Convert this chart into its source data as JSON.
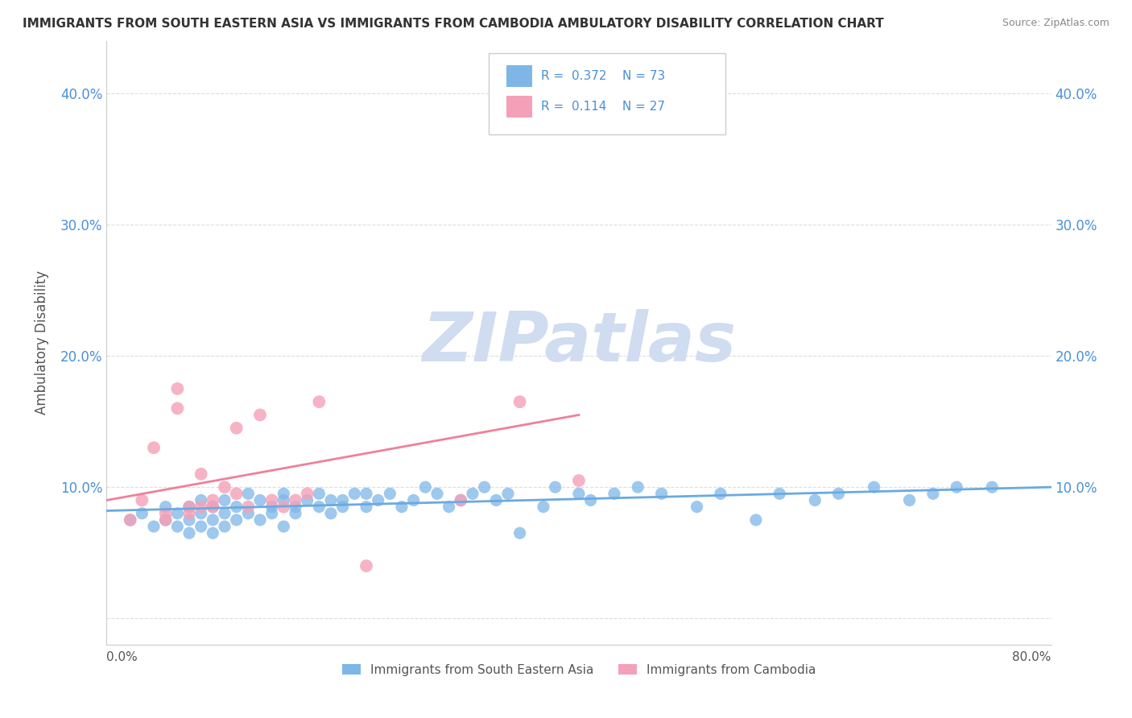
{
  "title": "IMMIGRANTS FROM SOUTH EASTERN ASIA VS IMMIGRANTS FROM CAMBODIA AMBULATORY DISABILITY CORRELATION CHART",
  "source": "Source: ZipAtlas.com",
  "ylabel": "Ambulatory Disability",
  "yticks": [
    "",
    "10.0%",
    "20.0%",
    "30.0%",
    "40.0%"
  ],
  "ytick_vals": [
    0.0,
    0.1,
    0.2,
    0.3,
    0.4
  ],
  "xlim": [
    0.0,
    0.8
  ],
  "ylim": [
    -0.02,
    0.44
  ],
  "legend_r1": "0.372",
  "legend_n1": "73",
  "legend_r2": "0.114",
  "legend_n2": "27",
  "color_blue": "#7EB6E8",
  "color_pink": "#F4A0B8",
  "color_blue_line": "#6AAAE0",
  "color_pink_line": "#F08098",
  "color_blue_text": "#4A90D9",
  "watermark_color": "#D0DCF0",
  "background_color": "#FFFFFF",
  "grid_color": "#DDDDDD",
  "blue_scatter_x": [
    0.02,
    0.03,
    0.04,
    0.05,
    0.05,
    0.06,
    0.06,
    0.07,
    0.07,
    0.07,
    0.08,
    0.08,
    0.08,
    0.09,
    0.09,
    0.09,
    0.1,
    0.1,
    0.1,
    0.11,
    0.11,
    0.12,
    0.12,
    0.13,
    0.13,
    0.14,
    0.14,
    0.15,
    0.15,
    0.15,
    0.16,
    0.16,
    0.17,
    0.18,
    0.18,
    0.19,
    0.19,
    0.2,
    0.2,
    0.21,
    0.22,
    0.22,
    0.23,
    0.24,
    0.25,
    0.26,
    0.27,
    0.28,
    0.29,
    0.3,
    0.31,
    0.32,
    0.33,
    0.34,
    0.35,
    0.37,
    0.38,
    0.4,
    0.41,
    0.43,
    0.45,
    0.47,
    0.5,
    0.52,
    0.55,
    0.57,
    0.6,
    0.62,
    0.65,
    0.68,
    0.7,
    0.72,
    0.75
  ],
  "blue_scatter_y": [
    0.075,
    0.08,
    0.07,
    0.085,
    0.075,
    0.08,
    0.07,
    0.085,
    0.075,
    0.065,
    0.09,
    0.08,
    0.07,
    0.085,
    0.075,
    0.065,
    0.09,
    0.08,
    0.07,
    0.085,
    0.075,
    0.095,
    0.08,
    0.09,
    0.075,
    0.085,
    0.08,
    0.095,
    0.09,
    0.07,
    0.085,
    0.08,
    0.09,
    0.085,
    0.095,
    0.09,
    0.08,
    0.09,
    0.085,
    0.095,
    0.095,
    0.085,
    0.09,
    0.095,
    0.085,
    0.09,
    0.1,
    0.095,
    0.085,
    0.09,
    0.095,
    0.1,
    0.09,
    0.095,
    0.065,
    0.085,
    0.1,
    0.095,
    0.09,
    0.095,
    0.1,
    0.095,
    0.085,
    0.095,
    0.075,
    0.095,
    0.09,
    0.095,
    0.1,
    0.09,
    0.095,
    0.1,
    0.1
  ],
  "pink_scatter_x": [
    0.02,
    0.03,
    0.04,
    0.05,
    0.05,
    0.06,
    0.06,
    0.07,
    0.07,
    0.08,
    0.08,
    0.09,
    0.09,
    0.1,
    0.11,
    0.11,
    0.12,
    0.13,
    0.14,
    0.15,
    0.16,
    0.17,
    0.18,
    0.22,
    0.3,
    0.35,
    0.4
  ],
  "pink_scatter_y": [
    0.075,
    0.09,
    0.13,
    0.08,
    0.075,
    0.16,
    0.175,
    0.085,
    0.08,
    0.085,
    0.11,
    0.09,
    0.085,
    0.1,
    0.145,
    0.095,
    0.085,
    0.155,
    0.09,
    0.085,
    0.09,
    0.095,
    0.165,
    0.04,
    0.09,
    0.165,
    0.105
  ],
  "blue_line_x": [
    0.0,
    0.8
  ],
  "blue_line_y": [
    0.082,
    0.1
  ],
  "pink_line_x": [
    0.0,
    0.4
  ],
  "pink_line_y": [
    0.09,
    0.155
  ],
  "legend_label_blue": "Immigrants from South Eastern Asia",
  "legend_label_pink": "Immigrants from Cambodia"
}
